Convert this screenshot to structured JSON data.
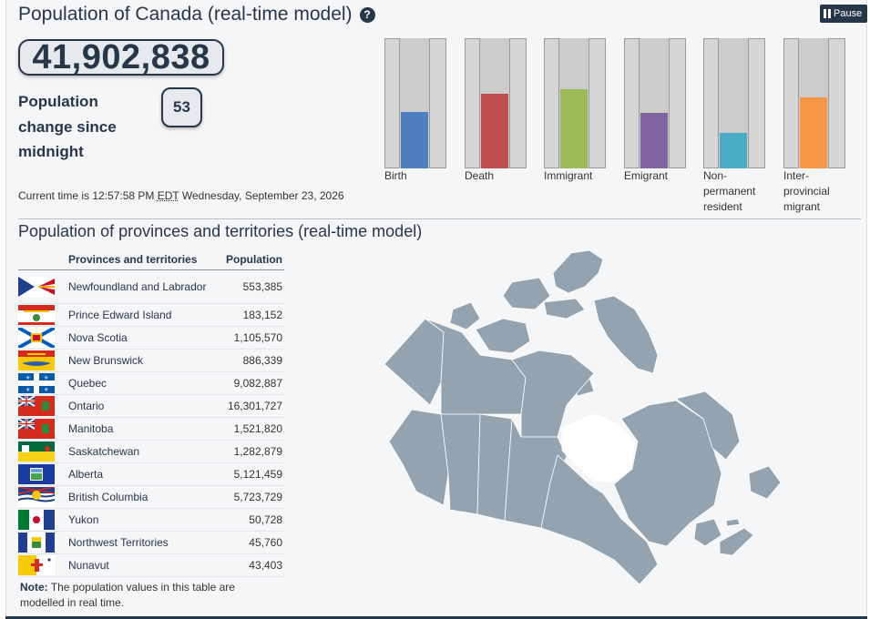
{
  "header": {
    "title": "Population of Canada (real-time model)",
    "help_icon": "question-circle-icon",
    "pause_label": "Pause"
  },
  "population": {
    "total": "41,902,838",
    "change_label": "Population change since midnight",
    "change_value": "53"
  },
  "time": {
    "prefix": "Current time is 12:57:58 PM",
    "zone": "EDT",
    "date": "Wednesday, September 23, 2026"
  },
  "components": [
    {
      "label": "Birth",
      "color": "#4f7fbf",
      "level": 0.44
    },
    {
      "label": "Death",
      "color": "#c0504d",
      "level": 0.58
    },
    {
      "label": "Immigrant",
      "color": "#9bbb59",
      "level": 0.62
    },
    {
      "label": "Emigrant",
      "color": "#8064a2",
      "level": 0.43
    },
    {
      "label": "Non-permanent resident",
      "color": "#4bacc6",
      "level": 0.28
    },
    {
      "label": "Inter-provincial migrant",
      "color": "#f79646",
      "level": 0.55
    }
  ],
  "provinces_section": {
    "title": "Population of provinces and territories (real-time model)",
    "col_name": "Provinces and territories",
    "col_pop": "Population",
    "rows": [
      {
        "name": "Newfoundland and Labrador",
        "pop": "553,385",
        "flag": "nl"
      },
      {
        "name": "Prince Edward Island",
        "pop": "183,152",
        "flag": "pe"
      },
      {
        "name": "Nova Scotia",
        "pop": "1,105,570",
        "flag": "ns"
      },
      {
        "name": "New Brunswick",
        "pop": "886,339",
        "flag": "nb"
      },
      {
        "name": "Quebec",
        "pop": "9,082,887",
        "flag": "qc"
      },
      {
        "name": "Ontario",
        "pop": "16,301,727",
        "flag": "on"
      },
      {
        "name": "Manitoba",
        "pop": "1,521,820",
        "flag": "mb"
      },
      {
        "name": "Saskatchewan",
        "pop": "1,282,879",
        "flag": "sk"
      },
      {
        "name": "Alberta",
        "pop": "5,121,459",
        "flag": "ab"
      },
      {
        "name": "British Columbia",
        "pop": "5,723,729",
        "flag": "bc"
      },
      {
        "name": "Yukon",
        "pop": "50,728",
        "flag": "yt"
      },
      {
        "name": "Northwest Territories",
        "pop": "45,760",
        "flag": "nt"
      },
      {
        "name": "Nunavut",
        "pop": "43,403",
        "flag": "nu"
      }
    ],
    "note_label": "Note:",
    "note_text": "The population values in this table are modelled in real time."
  },
  "map": {
    "icon": "canada-map",
    "color": "#94a3b0"
  }
}
